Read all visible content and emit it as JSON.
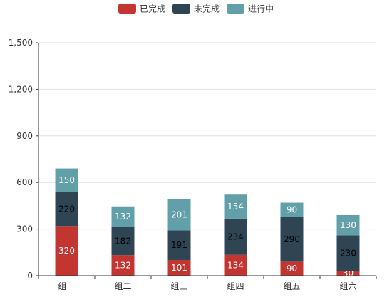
{
  "colors": {
    "completed": "#c23531",
    "incomplete": "#2f4554",
    "in_progress": "#61a0a8",
    "grid": "#e0e0e0",
    "axis": "#333333",
    "tick_label": "#333333",
    "bar_label_light": "#ffffff",
    "bar_label_dark": "#000000"
  },
  "chart_data": {
    "type": "bar",
    "stacked": true,
    "title": "",
    "xlabel": "",
    "ylabel": "",
    "categories": [
      "组一",
      "组二",
      "组三",
      "组四",
      "组五",
      "组六"
    ],
    "series": [
      {
        "name": "已完成",
        "values": [
          320,
          132,
          101,
          134,
          90,
          30
        ],
        "color": "#c23531",
        "label_color": "#ffffff"
      },
      {
        "name": "未完成",
        "values": [
          220,
          182,
          191,
          234,
          290,
          230
        ],
        "color": "#2f4554",
        "label_color": "#000000"
      },
      {
        "name": "进行中",
        "values": [
          150,
          132,
          201,
          154,
          90,
          130
        ],
        "color": "#61a0a8",
        "label_color": "#ffffff"
      }
    ],
    "ylim": [
      0,
      1500
    ],
    "yticks": [
      0,
      300,
      600,
      900,
      1200,
      1500
    ],
    "ytick_labels": [
      "0",
      "300",
      "600",
      "900",
      "1,200",
      "1,500"
    ],
    "grid": true,
    "legend_position": "top-center"
  }
}
